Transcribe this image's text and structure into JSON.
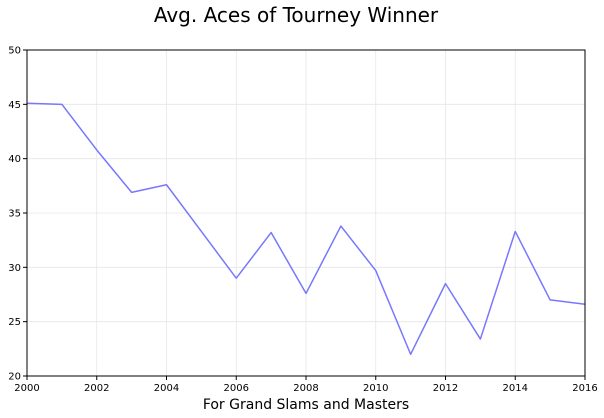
{
  "chart_data": {
    "type": "line",
    "title": "Avg. Aces of Tourney Winner",
    "xlabel": "For Grand Slams and Masters",
    "ylabel": "",
    "xlim": [
      2000,
      2016
    ],
    "ylim": [
      20,
      50
    ],
    "xticks": [
      2000,
      2002,
      2004,
      2006,
      2008,
      2010,
      2012,
      2014,
      2016
    ],
    "yticks": [
      20,
      25,
      30,
      35,
      40,
      45,
      50
    ],
    "grid": true,
    "series": [
      {
        "color": "#7777ff",
        "x": [
          2000,
          2001,
          2002,
          2003,
          2004,
          2005,
          2006,
          2007,
          2008,
          2009,
          2010,
          2011,
          2012,
          2013,
          2014,
          2015,
          2016
        ],
        "y": [
          45.1,
          45.0,
          40.8,
          36.9,
          37.6,
          33.3,
          29.0,
          33.2,
          27.6,
          33.8,
          29.7,
          22.0,
          28.5,
          23.4,
          33.3,
          27.0,
          26.6
        ]
      }
    ]
  }
}
